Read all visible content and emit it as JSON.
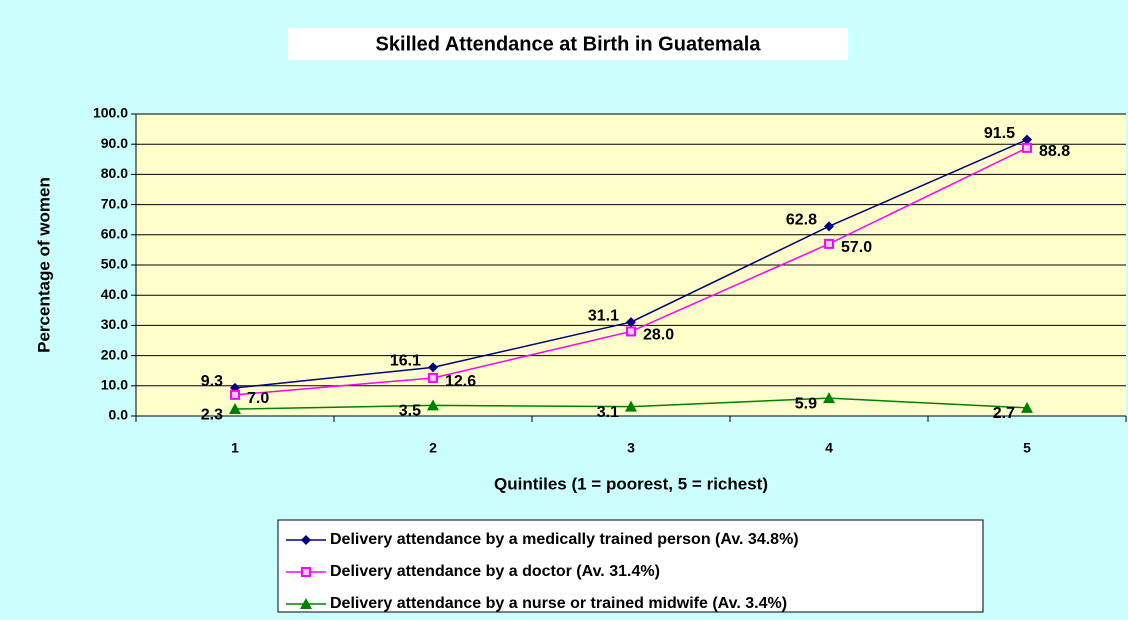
{
  "chart_data": {
    "type": "line",
    "title": "Skilled Attendance at Birth in Guatemala",
    "y_label": "Percentage of women",
    "x_label": "Quintiles (1 = poorest, 5 = richest)",
    "categories": [
      "1",
      "2",
      "3",
      "4",
      "5"
    ],
    "series": [
      {
        "name": "Delivery attendance by a medically trained person (Av. 34.8%)",
        "color": "#000080",
        "marker": "diamond",
        "values": [
          9.3,
          16.1,
          31.1,
          62.8,
          91.5
        ],
        "value_labels": [
          "9.3",
          "16.1",
          "31.1",
          "62.8",
          "91.5"
        ]
      },
      {
        "name": "Delivery attendance by a doctor (Av. 31.4%)",
        "color": "#ff00ff",
        "marker": "square",
        "values": [
          7.0,
          12.6,
          28.0,
          57.0,
          88.8
        ],
        "value_labels": [
          "7.0",
          "12.6",
          "28.0",
          "57.0",
          "88.8"
        ]
      },
      {
        "name": "Delivery attendance by a nurse or trained midwife (Av. 3.4%)",
        "color": "#008000",
        "marker": "triangle",
        "values": [
          2.3,
          3.5,
          3.1,
          5.9,
          2.7
        ],
        "value_labels": [
          "2.3",
          "3.5",
          "3.1",
          "5.9",
          "2.7"
        ]
      }
    ],
    "ylim": [
      0,
      100
    ],
    "yticks": [
      {
        "value": 0,
        "label": "0.0"
      },
      {
        "value": 10,
        "label": "10.0"
      },
      {
        "value": 20,
        "label": "20.0"
      },
      {
        "value": 30,
        "label": "30.0"
      },
      {
        "value": 40,
        "label": "40.0"
      },
      {
        "value": 50,
        "label": "50.0"
      },
      {
        "value": 60,
        "label": "60.0"
      },
      {
        "value": 70,
        "label": "70.0"
      },
      {
        "value": 80,
        "label": "80.0"
      },
      {
        "value": 90,
        "label": "90.0"
      },
      {
        "value": 100,
        "label": "100.0"
      }
    ],
    "grid": true,
    "legend": "bottom"
  }
}
